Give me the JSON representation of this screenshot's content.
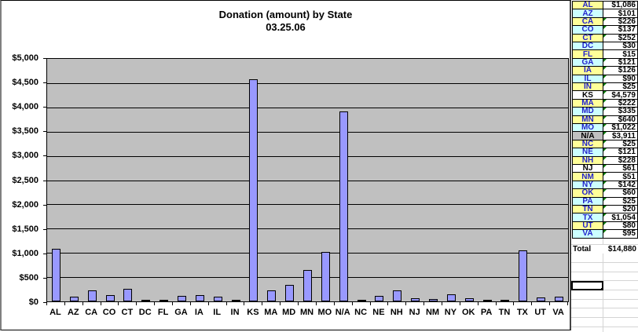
{
  "chart": {
    "title": "Donation (amount) by State",
    "subtitle": "03.25.06"
  },
  "chart_data": {
    "type": "bar",
    "categories": [
      "AL",
      "AZ",
      "CA",
      "CO",
      "CT",
      "DC",
      "FL",
      "GA",
      "IA",
      "IL",
      "IN",
      "KS",
      "MA",
      "MD",
      "MN",
      "MO",
      "N/A",
      "NC",
      "NE",
      "NH",
      "NJ",
      "NM",
      "NY",
      "OK",
      "PA",
      "TN",
      "TX",
      "UT",
      "VA"
    ],
    "values": [
      1086,
      101,
      226,
      137,
      252,
      30,
      15,
      121,
      126,
      90,
      25,
      4579,
      222,
      335,
      640,
      1022,
      3911,
      25,
      121,
      228,
      61,
      51,
      142,
      60,
      25,
      20,
      1054,
      80,
      95
    ],
    "title": "Donation (amount) by State",
    "subtitle": "03.25.06",
    "xlabel": "",
    "ylabel": "",
    "ylim": [
      0,
      5000
    ],
    "ytick_step": 500,
    "ytick_labels": [
      "$0",
      "$500",
      "$1,000",
      "$1,500",
      "$2,000",
      "$2,500",
      "$3,000",
      "$3,500",
      "$4,000",
      "$4,500",
      "$5,000"
    ],
    "grid": true,
    "legend": "none",
    "bar_color": "#9999FF",
    "plot_bg": "#C0C0C0"
  },
  "table": {
    "rows": [
      {
        "state": "AL",
        "value": "$1,086",
        "bg": "yellow",
        "flag": false
      },
      {
        "state": "AZ",
        "value": "$101",
        "bg": "cyan",
        "flag": false
      },
      {
        "state": "CA",
        "value": "$226",
        "bg": "yellow",
        "flag": true
      },
      {
        "state": "CO",
        "value": "$137",
        "bg": "cyan",
        "flag": true
      },
      {
        "state": "CT",
        "value": "$252",
        "bg": "yellow",
        "flag": true
      },
      {
        "state": "DC",
        "value": "$30",
        "bg": "cyan",
        "flag": false
      },
      {
        "state": "FL",
        "value": "$15",
        "bg": "yellow",
        "flag": false
      },
      {
        "state": "GA",
        "value": "$121",
        "bg": "cyan",
        "flag": true
      },
      {
        "state": "IA",
        "value": "$126",
        "bg": "yellow",
        "flag": true
      },
      {
        "state": "IL",
        "value": "$90",
        "bg": "cyan",
        "flag": true
      },
      {
        "state": "IN",
        "value": "$25",
        "bg": "yellow",
        "flag": true
      },
      {
        "state": "KS",
        "value": "$4,579",
        "bg": "white",
        "flag": true
      },
      {
        "state": "MA",
        "value": "$222",
        "bg": "yellow",
        "flag": true
      },
      {
        "state": "MD",
        "value": "$335",
        "bg": "cyan",
        "flag": true
      },
      {
        "state": "MN",
        "value": "$640",
        "bg": "yellow",
        "flag": true
      },
      {
        "state": "MO",
        "value": "$1,022",
        "bg": "cyan",
        "flag": true
      },
      {
        "state": "N/A",
        "value": "$3,911",
        "bg": "gray",
        "flag": true
      },
      {
        "state": "NC",
        "value": "$25",
        "bg": "yellow",
        "flag": true
      },
      {
        "state": "NE",
        "value": "$121",
        "bg": "cyan",
        "flag": true
      },
      {
        "state": "NH",
        "value": "$228",
        "bg": "yellow",
        "flag": true
      },
      {
        "state": "NJ",
        "value": "$61",
        "bg": "white",
        "flag": true
      },
      {
        "state": "NM",
        "value": "$51",
        "bg": "yellow",
        "flag": true
      },
      {
        "state": "NY",
        "value": "$142",
        "bg": "cyan",
        "flag": true
      },
      {
        "state": "OK",
        "value": "$60",
        "bg": "yellow",
        "flag": true
      },
      {
        "state": "PA",
        "value": "$25",
        "bg": "cyan",
        "flag": true
      },
      {
        "state": "TN",
        "value": "$20",
        "bg": "yellow",
        "flag": true
      },
      {
        "state": "TX",
        "value": "$1,054",
        "bg": "cyan",
        "flag": true
      },
      {
        "state": "UT",
        "value": "$80",
        "bg": "yellow",
        "flag": true
      },
      {
        "state": "VA",
        "value": "$95",
        "bg": "cyan",
        "flag": true
      }
    ],
    "total_label": "Total",
    "total_value": "$14,880"
  },
  "colors": {
    "yellow": "#FFFF99",
    "cyan": "#CCFFFF",
    "gray": "#C0C0C0",
    "white": "#FFFFFF",
    "state_text_blue": "#2222CC",
    "text_black": "#000000",
    "flag_green": "#007A00",
    "bar": "#9999FF",
    "plot_bg": "#C0C0C0",
    "sheet_gridline": "#D4D4D4"
  }
}
